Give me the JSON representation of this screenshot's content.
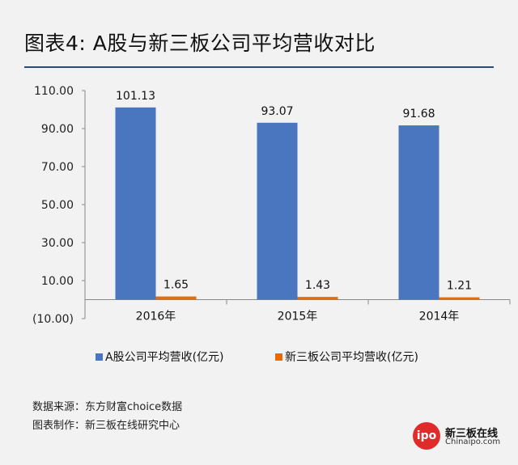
{
  "header": {
    "title": "图表4: A股与新三板公司平均营收对比"
  },
  "chart_data": {
    "type": "bar",
    "categories": [
      "2016年",
      "2015年",
      "2014年"
    ],
    "series": [
      {
        "name": "A股公司平均营收(亿元)",
        "values": [
          101.13,
          93.07,
          91.68
        ],
        "color": "#4a76c0"
      },
      {
        "name": "新三板公司平均营收(亿元)",
        "values": [
          1.65,
          1.43,
          1.21
        ],
        "color": "#e46c0a"
      }
    ],
    "yticks": [
      110,
      90,
      70,
      50,
      30,
      10,
      -10
    ],
    "ytick_labels": [
      "110.00",
      "90.00",
      "70.00",
      "50.00",
      "30.00",
      "10.00",
      "(10.00)"
    ],
    "data_labels": [
      [
        "101.13",
        "93.07",
        "91.68"
      ],
      [
        "1.65",
        "1.43",
        "1.21"
      ]
    ],
    "ylim": [
      -10,
      110
    ],
    "legend": "bottom",
    "grid": false
  },
  "footer": {
    "source": "数据来源：东方财富choice数据",
    "maker": "图表制作：新三板在线研究中心"
  },
  "logo": {
    "mark": "ipo",
    "name": "新三板在线",
    "sub": "Chinaipo.com"
  }
}
